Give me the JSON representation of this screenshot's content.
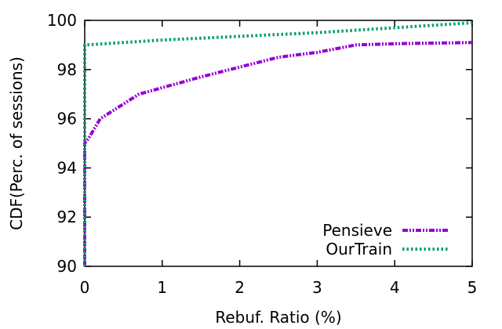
{
  "chart_data": {
    "type": "line",
    "xlabel": "Rebuf. Ratio (%)",
    "ylabel": "CDF(Perc. of sessions)",
    "xlim": [
      0,
      5
    ],
    "ylim": [
      90,
      100
    ],
    "x_ticks": [
      "0",
      "1",
      "2",
      "3",
      "4",
      "5"
    ],
    "y_ticks": [
      "90",
      "92",
      "94",
      "96",
      "98",
      "100"
    ],
    "grid": false,
    "legend_position": "bottom-right",
    "series": [
      {
        "name": "Pensieve",
        "color": "#9400d3",
        "style": "dash-dot-dot",
        "x": [
          0,
          0,
          0.05,
          0.2,
          0.7,
          1.5,
          2.5,
          3.0,
          3.5,
          4.0,
          5.0
        ],
        "y": [
          90,
          95,
          95.2,
          96,
          97,
          97.7,
          98.5,
          98.7,
          99.0,
          99.05,
          99.1
        ]
      },
      {
        "name": "OurTrain",
        "color": "#009e73",
        "style": "dotted",
        "x": [
          0,
          0,
          0.5,
          1,
          2,
          3,
          4,
          5
        ],
        "y": [
          90,
          99,
          99.1,
          99.2,
          99.35,
          99.5,
          99.7,
          99.9
        ]
      }
    ]
  }
}
